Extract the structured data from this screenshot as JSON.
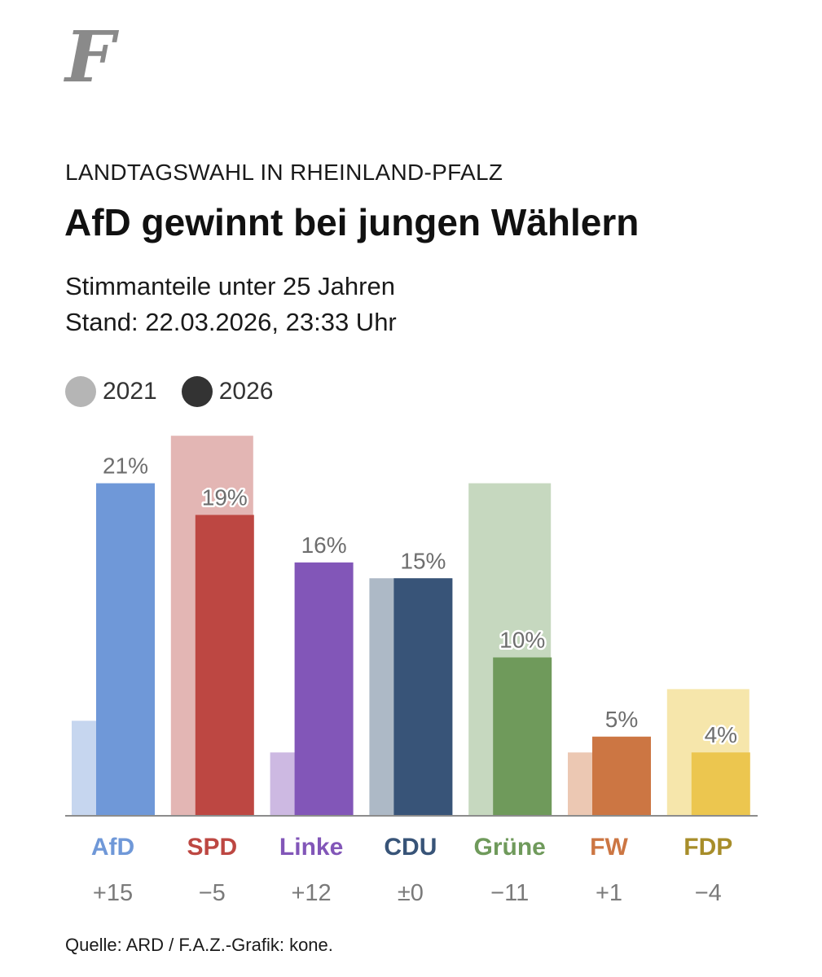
{
  "logo_letter": "F",
  "header": {
    "kicker": "LANDTAGSWAHL IN RHEINLAND-PFALZ",
    "title": "AfD gewinnt bei jungen Wählern",
    "subtitle": "Stimmanteile unter 25 Jahren",
    "stand": "Stand: 22.03.2026, 23:33 Uhr"
  },
  "legend": [
    {
      "label": "2021",
      "color": "#b5b5b5"
    },
    {
      "label": "2026",
      "color": "#333333"
    }
  ],
  "source": "Quelle: ARD / F.A.Z.-Grafik: kone.",
  "chart_data": {
    "type": "bar",
    "categories": [
      "AfD",
      "SPD",
      "Linke",
      "CDU",
      "Grüne",
      "FW",
      "FDP"
    ],
    "series": [
      {
        "name": "2021",
        "values": [
          6,
          24,
          4,
          15,
          21,
          4,
          8
        ]
      },
      {
        "name": "2026",
        "values": [
          21,
          19,
          16,
          15,
          10,
          5,
          4
        ]
      }
    ],
    "labels_2026": [
      "21%",
      "19%",
      "16%",
      "15%",
      "10%",
      "5%",
      "4%"
    ],
    "changes": [
      "+15",
      "−5",
      "+12",
      "±0",
      "−11",
      "+1",
      "−4"
    ],
    "colors_2026": [
      "#6f98d8",
      "#bd4742",
      "#8256b8",
      "#385478",
      "#6f9a5b",
      "#cc7643",
      "#ecc64f"
    ],
    "colors_2021": [
      "#c6d6ef",
      "#e3b6b4",
      "#cdb9e2",
      "#adb9c6",
      "#c6d8bf",
      "#ecc8b3",
      "#f6e6ab"
    ],
    "label_colors": [
      "#6f98d8",
      "#bd4742",
      "#8256b8",
      "#385478",
      "#6f9a5b",
      "#cc7643",
      "#a78d2a"
    ],
    "ylim": [
      0,
      24
    ],
    "grid": false
  }
}
